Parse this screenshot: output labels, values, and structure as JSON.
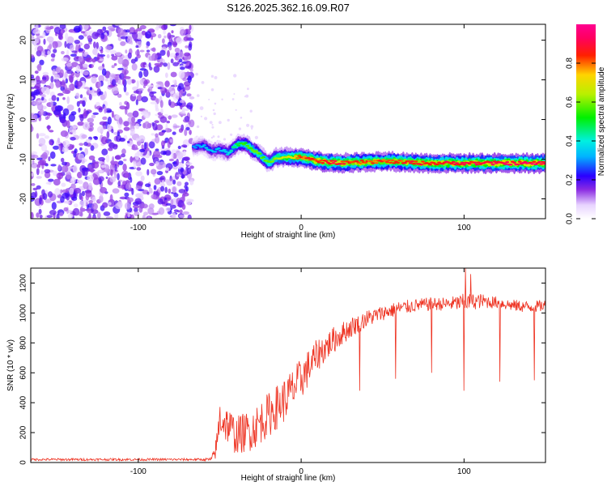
{
  "chart_data": [
    {
      "type": "heatmap",
      "title": "S126.2025.362.16.09.R07",
      "xlabel": "Height of straight line (km)",
      "ylabel": "Frequency (Hz)",
      "xlim": [
        -166,
        150
      ],
      "ylim": [
        -25,
        24
      ],
      "xticks": [
        -100,
        0,
        100
      ],
      "xtick_labels": [
        "-100",
        "0",
        "100"
      ],
      "yticks": [
        -20,
        -10,
        0,
        10,
        20
      ],
      "ytick_labels": [
        "-20",
        "-10",
        "0",
        "10",
        "20"
      ],
      "colorbar": {
        "label": "Normalized spectral amplitude",
        "range": [
          0,
          1
        ],
        "ticks": [
          0.0,
          0.2,
          0.4,
          0.6,
          0.8
        ],
        "tick_labels": [
          "0.0",
          "0.2",
          "0.4",
          "0.6",
          "0.8"
        ],
        "colormap": "rainbow (white-purple-blue-cyan-green-yellow-red-magenta)"
      },
      "noise_region_x": [
        -166,
        -67
      ],
      "noise_amplitude": 0.15,
      "tone_track": {
        "x": [
          -66,
          -60,
          -55,
          -50,
          -45,
          -40,
          -35,
          -30,
          -25,
          -20,
          -15,
          -10,
          -5,
          0,
          10,
          25,
          50,
          75,
          100,
          125,
          150
        ],
        "freq_hz": [
          -7.0,
          -6.5,
          -8.0,
          -7.5,
          -8.5,
          -6.5,
          -6.0,
          -7.5,
          -9.0,
          -11.0,
          -9.5,
          -9.5,
          -9.5,
          -9.5,
          -10.5,
          -11.0,
          -10.5,
          -11.0,
          -11.0,
          -11.0,
          -11.0
        ],
        "amplitude": [
          0.25,
          0.3,
          0.3,
          0.3,
          0.35,
          0.45,
          0.5,
          0.55,
          0.55,
          0.55,
          0.6,
          0.65,
          0.7,
          0.8,
          0.85,
          0.85,
          0.8,
          0.85,
          0.85,
          0.9,
          0.9
        ]
      }
    },
    {
      "type": "line",
      "xlabel": "Height of straight line (km)",
      "ylabel": "SNR (10 * v/v)",
      "xlim": [
        -166,
        150
      ],
      "ylim": [
        0,
        1300
      ],
      "xticks": [
        -100,
        0,
        100
      ],
      "xtick_labels": [
        "-100",
        "0",
        "100"
      ],
      "yticks": [
        0,
        200,
        400,
        600,
        800,
        1000,
        1200
      ],
      "ytick_labels": [
        "0",
        "200",
        "400",
        "600",
        "800",
        "1000",
        "1200"
      ],
      "color": "#ee3322",
      "envelope": {
        "x": [
          -166,
          -60,
          -55,
          -52,
          -50,
          -45,
          -40,
          -30,
          -20,
          -10,
          0,
          10,
          20,
          30,
          40,
          50,
          60,
          70,
          80,
          90,
          100,
          110,
          120,
          130,
          140,
          150
        ],
        "mean": [
          20,
          20,
          20,
          100,
          300,
          250,
          180,
          220,
          320,
          420,
          560,
          720,
          820,
          900,
          960,
          1000,
          1030,
          1050,
          1060,
          1060,
          1070,
          1080,
          1070,
          1050,
          1040,
          1050
        ],
        "spread": [
          8,
          8,
          15,
          80,
          130,
          130,
          130,
          140,
          150,
          150,
          140,
          110,
          90,
          70,
          60,
          50,
          50,
          45,
          45,
          45,
          60,
          50,
          40,
          40,
          40,
          40
        ]
      },
      "dropouts": [
        {
          "x": 36,
          "y": 480
        },
        {
          "x": 58,
          "y": 560
        },
        {
          "x": 80,
          "y": 600
        },
        {
          "x": 100,
          "y": 480
        },
        {
          "x": 122,
          "y": 540
        },
        {
          "x": 143,
          "y": 550
        }
      ],
      "spikes": [
        {
          "x": 101,
          "y": 1300
        },
        {
          "x": 104,
          "y": 1260
        }
      ]
    }
  ]
}
